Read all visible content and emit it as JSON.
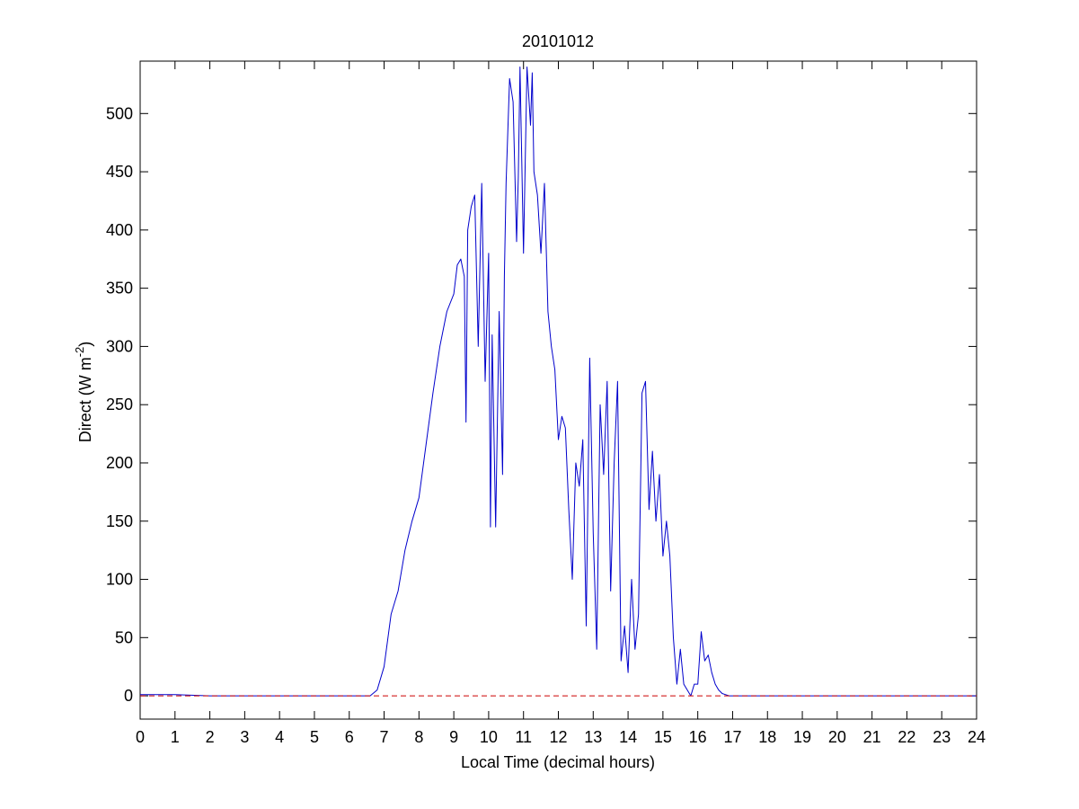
{
  "chart_data": {
    "type": "line",
    "title": "20101012",
    "xlabel": "Local Time (decimal hours)",
    "ylabel_main": "Direct (W m",
    "ylabel_sup": "-2",
    "ylabel_close": ")",
    "xlim": [
      0,
      24
    ],
    "ylim": [
      -20,
      545
    ],
    "xticks": [
      "0",
      "1",
      "2",
      "3",
      "4",
      "5",
      "6",
      "7",
      "8",
      "9",
      "10",
      "11",
      "12",
      "13",
      "14",
      "15",
      "16",
      "17",
      "18",
      "19",
      "20",
      "21",
      "22",
      "23",
      "24"
    ],
    "yticks": [
      "0",
      "50",
      "100",
      "150",
      "200",
      "250",
      "300",
      "350",
      "400",
      "450",
      "500"
    ],
    "grid": false,
    "legend": "none",
    "series": [
      {
        "color": "#0000cc",
        "style": "solid",
        "x": [
          0,
          1,
          2,
          3,
          4,
          5,
          6,
          6.6,
          6.8,
          7.0,
          7.2,
          7.4,
          7.6,
          7.8,
          8.0,
          8.2,
          8.4,
          8.6,
          8.8,
          9.0,
          9.1,
          9.2,
          9.3,
          9.35,
          9.4,
          9.5,
          9.6,
          9.7,
          9.8,
          9.9,
          10.0,
          10.05,
          10.1,
          10.2,
          10.3,
          10.4,
          10.45,
          10.5,
          10.6,
          10.7,
          10.8,
          10.85,
          10.9,
          11.0,
          11.1,
          11.2,
          11.25,
          11.3,
          11.4,
          11.5,
          11.6,
          11.7,
          11.8,
          11.9,
          12.0,
          12.1,
          12.2,
          12.3,
          12.4,
          12.5,
          12.6,
          12.7,
          12.8,
          12.9,
          13.0,
          13.1,
          13.2,
          13.3,
          13.4,
          13.5,
          13.6,
          13.7,
          13.8,
          13.9,
          14.0,
          14.1,
          14.2,
          14.3,
          14.4,
          14.5,
          14.6,
          14.7,
          14.8,
          14.9,
          15.0,
          15.1,
          15.2,
          15.3,
          15.4,
          15.5,
          15.6,
          15.7,
          15.8,
          15.9,
          16.0,
          16.1,
          16.2,
          16.3,
          16.4,
          16.5,
          16.6,
          16.7,
          16.8,
          16.9,
          17.0,
          17.1,
          17.2,
          17.3,
          17.4,
          17.5,
          18,
          19,
          20,
          21,
          22,
          23,
          24
        ],
        "y": [
          1,
          1,
          0,
          0,
          0,
          0,
          0,
          0,
          5,
          25,
          70,
          90,
          125,
          150,
          170,
          215,
          260,
          300,
          330,
          345,
          370,
          375,
          360,
          235,
          400,
          420,
          430,
          300,
          440,
          270,
          380,
          145,
          310,
          145,
          330,
          190,
          360,
          440,
          530,
          510,
          390,
          445,
          540,
          380,
          540,
          490,
          535,
          450,
          430,
          380,
          440,
          330,
          300,
          280,
          220,
          240,
          230,
          160,
          100,
          200,
          180,
          220,
          60,
          290,
          140,
          40,
          250,
          190,
          270,
          90,
          200,
          270,
          30,
          60,
          20,
          100,
          40,
          70,
          260,
          270,
          160,
          210,
          150,
          190,
          120,
          150,
          120,
          50,
          10,
          40,
          10,
          5,
          0,
          10,
          10,
          55,
          30,
          35,
          20,
          10,
          5,
          2,
          1,
          0,
          0,
          0,
          0,
          0,
          0,
          0,
          0,
          0,
          0,
          0,
          0,
          0,
          0
        ]
      },
      {
        "color": "#cc0000",
        "style": "dashed",
        "x": [
          0,
          24
        ],
        "y": [
          0,
          0
        ]
      }
    ]
  }
}
